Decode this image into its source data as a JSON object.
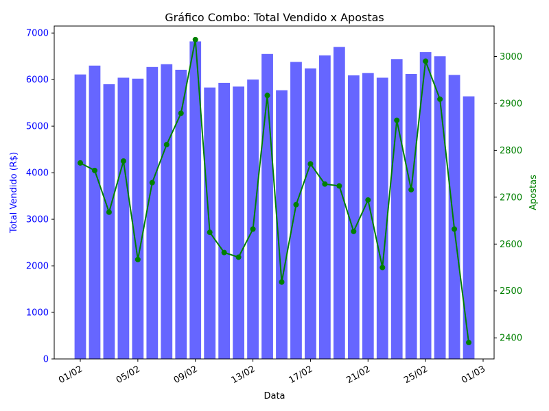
{
  "chart_data": {
    "type": "bar+line",
    "title": "Gráfico Combo: Total Vendido x Apostas",
    "xlabel": "Data",
    "ylabel_left": "Total Vendido (R$)",
    "ylabel_right": "Apostas",
    "colors": {
      "bars": "#6666ff",
      "line": "#008000",
      "left_axis": "#0000ff",
      "right_axis": "#008000"
    },
    "x_ticks": [
      "01/02",
      "05/02",
      "09/02",
      "13/02",
      "17/02",
      "21/02",
      "25/02",
      "01/03"
    ],
    "y_left": {
      "min": 0,
      "max": 7150,
      "ticks": [
        0,
        1000,
        2000,
        3000,
        4000,
        5000,
        6000,
        7000
      ]
    },
    "y_right": {
      "min": 2355,
      "max": 3065,
      "ticks": [
        2400,
        2500,
        2600,
        2700,
        2800,
        2900,
        3000
      ]
    },
    "dates": [
      "01/02",
      "02/02",
      "03/02",
      "04/02",
      "05/02",
      "06/02",
      "07/02",
      "08/02",
      "09/02",
      "10/02",
      "11/02",
      "12/02",
      "13/02",
      "14/02",
      "15/02",
      "16/02",
      "17/02",
      "18/02",
      "19/02",
      "20/02",
      "21/02",
      "22/02",
      "23/02",
      "24/02",
      "25/02",
      "26/02",
      "27/02",
      "28/02"
    ],
    "series": [
      {
        "kind": "bar",
        "axis": "left",
        "values": [
          6110,
          6300,
          5900,
          6040,
          6020,
          6270,
          6330,
          6210,
          6820,
          5830,
          5930,
          5850,
          6000,
          6550,
          5770,
          6380,
          6240,
          6520,
          6700,
          6090,
          6140,
          6040,
          6440,
          6120,
          6590,
          6500,
          6100,
          5640
        ]
      },
      {
        "kind": "line",
        "axis": "right",
        "values": [
          2773,
          2757,
          2668,
          2777,
          2567,
          2731,
          2812,
          2879,
          3036,
          2625,
          2582,
          2572,
          2632,
          2917,
          2519,
          2684,
          2771,
          2728,
          2724,
          2627,
          2694,
          2550,
          2864,
          2716,
          2990,
          2909,
          2632,
          2390
        ]
      }
    ]
  }
}
